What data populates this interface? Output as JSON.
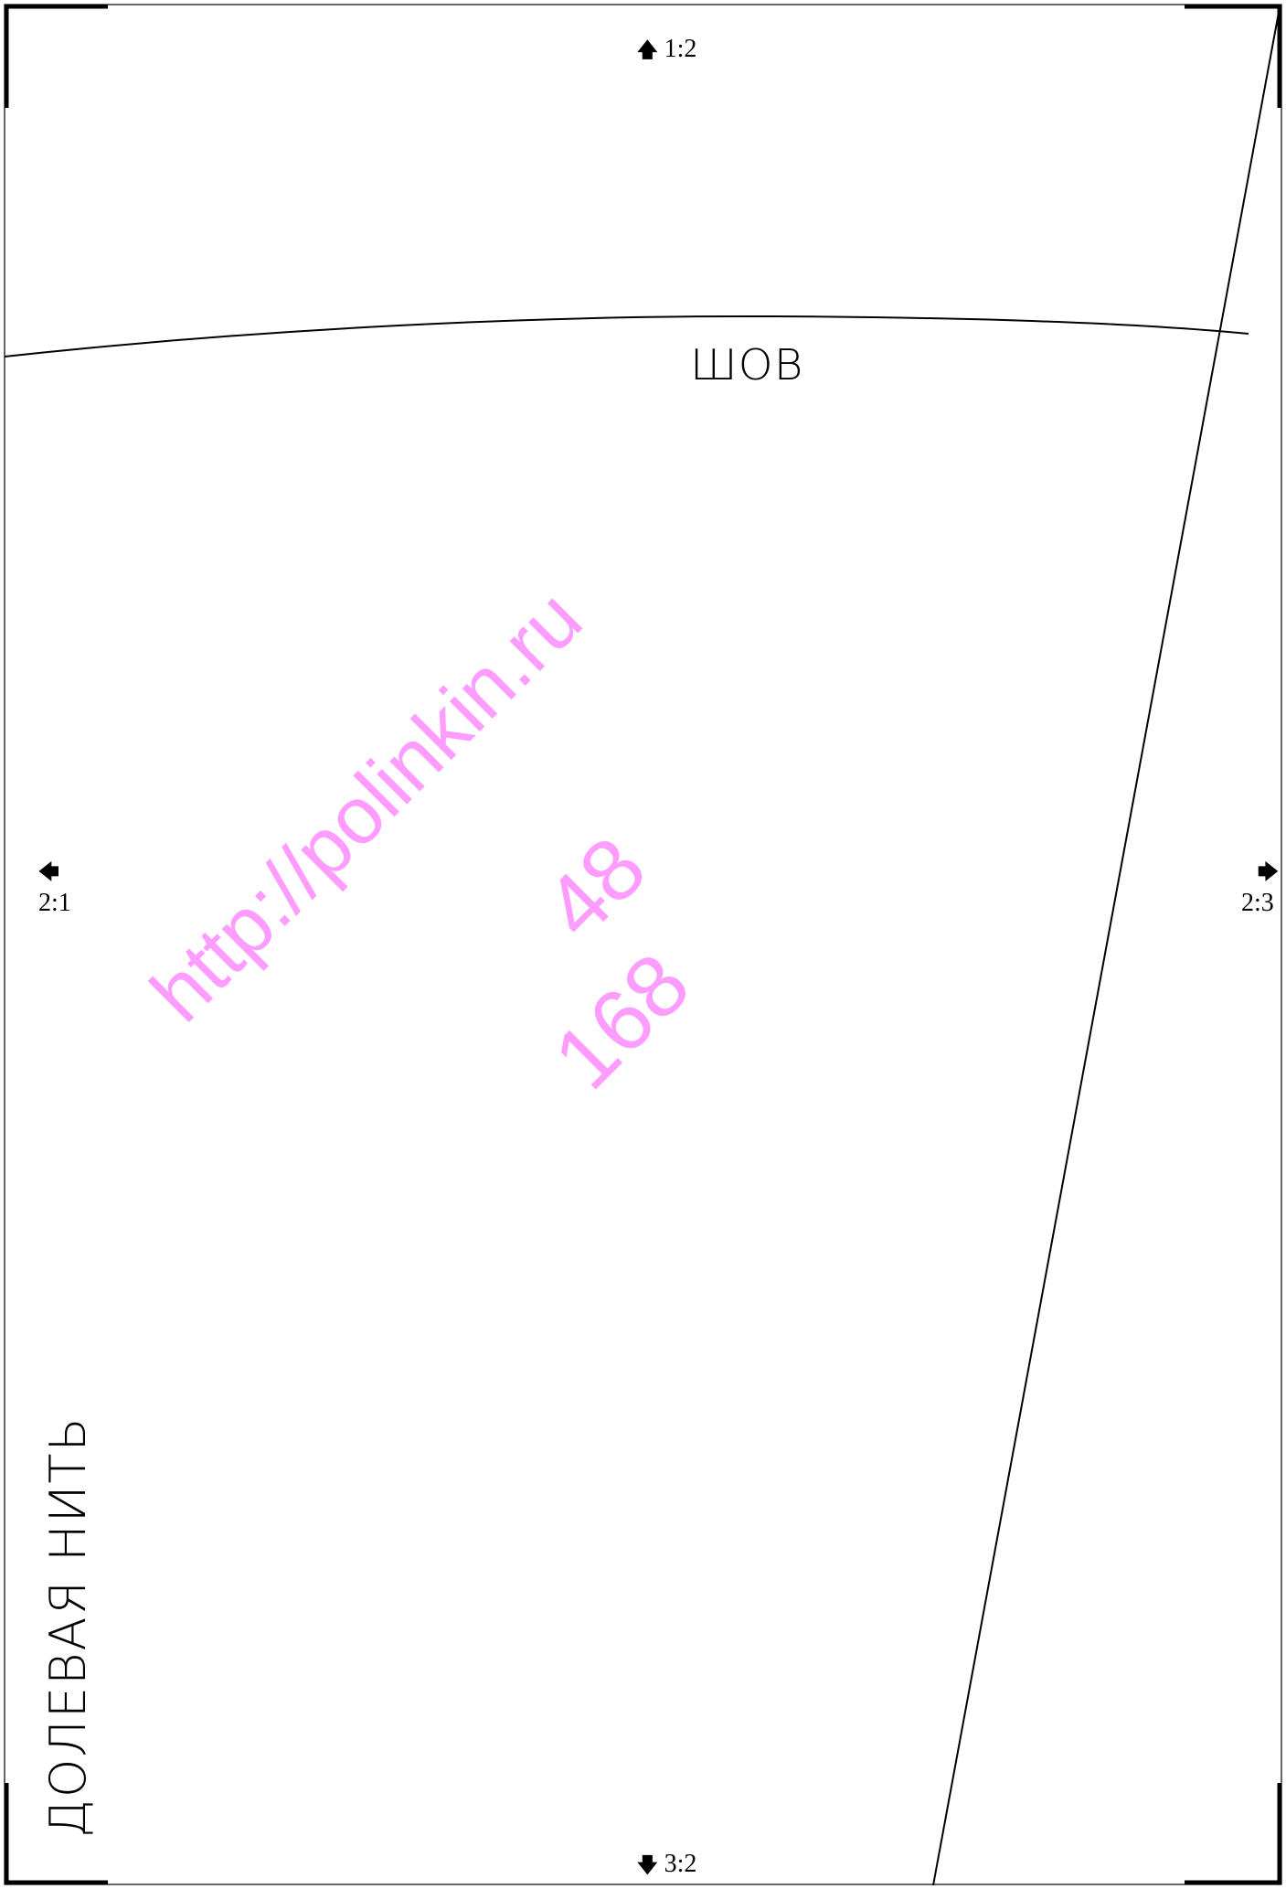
{
  "sheet_nav": {
    "top": "1:2",
    "left": "2:1",
    "right": "2:3",
    "bottom": "3:2"
  },
  "labels": {
    "seam": "ШОВ",
    "grain_line": "ДОЛЕВАЯ НИТЬ"
  },
  "watermark": {
    "url": "http://polinkin.ru",
    "size": "48",
    "height": "168",
    "color": "#ff9cff"
  },
  "colors": {
    "line": "#000000",
    "background": "#ffffff"
  }
}
